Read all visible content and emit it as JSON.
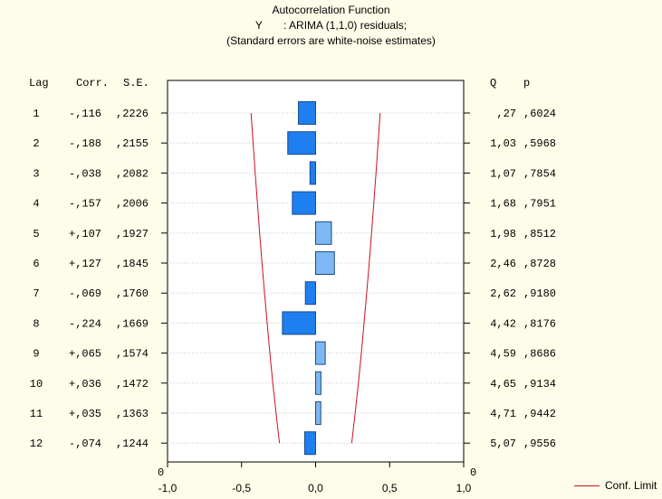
{
  "chart_data": {
    "type": "bar",
    "title_lines": [
      "Autocorrelation Function",
      "Y       : ARIMA (1,1,0) residuals;",
      "(Standard errors are white-noise estimates)"
    ],
    "column_headers": {
      "lag": "Lag",
      "corr": "Corr.",
      "se": "S.E.",
      "q": "Q",
      "p": "p"
    },
    "lags": [
      "1",
      "2",
      "3",
      "4",
      "5",
      "6",
      "7",
      "8",
      "9",
      "10",
      "11",
      "12"
    ],
    "corr_labels": [
      "-,116",
      "-,188",
      "-,038",
      "-,157",
      "+,107",
      "+,127",
      "-,069",
      "-,224",
      "+,065",
      "+,036",
      "+,035",
      "-,074"
    ],
    "se_labels": [
      ",2226",
      ",2155",
      ",2082",
      ",2006",
      ",1927",
      ",1845",
      ",1760",
      ",1669",
      ",1574",
      ",1472",
      ",1363",
      ",1244"
    ],
    "q_labels": [
      ",27",
      "1,03",
      "1,07",
      "1,68",
      "1,98",
      "2,46",
      "2,62",
      "4,42",
      "4,59",
      "4,65",
      "4,71",
      "5,07"
    ],
    "p_labels": [
      ",6024",
      ",5968",
      ",7854",
      ",7951",
      ",8512",
      ",8728",
      ",9180",
      ",8176",
      ",8686",
      ",9134",
      ",9442",
      ",9556"
    ],
    "values": [
      -0.116,
      -0.188,
      -0.038,
      -0.157,
      0.107,
      0.127,
      -0.069,
      -0.224,
      0.065,
      0.036,
      0.035,
      -0.074
    ],
    "conf_limits": [
      0.436,
      0.422,
      0.408,
      0.393,
      0.378,
      0.362,
      0.345,
      0.327,
      0.309,
      0.289,
      0.267,
      0.244
    ],
    "x_ticks": [
      "-1,0",
      "-0,5",
      "0,0",
      "0,5",
      "1,0"
    ],
    "x_tick_values": [
      -1.0,
      -0.5,
      0.0,
      0.5,
      1.0
    ],
    "xlim": [
      -1.0,
      1.0
    ],
    "axis_zero_left": "0",
    "axis_zero_right": "0",
    "legend": {
      "label": "Conf. Limit"
    },
    "colors": {
      "background": "#fdfde9",
      "plot_background": "#ffffff",
      "negative_bar": "#1e7ff0",
      "positive_bar": "#7db8f4",
      "conf_limit": "#d0101c",
      "grid": "#c8c8c8"
    }
  }
}
